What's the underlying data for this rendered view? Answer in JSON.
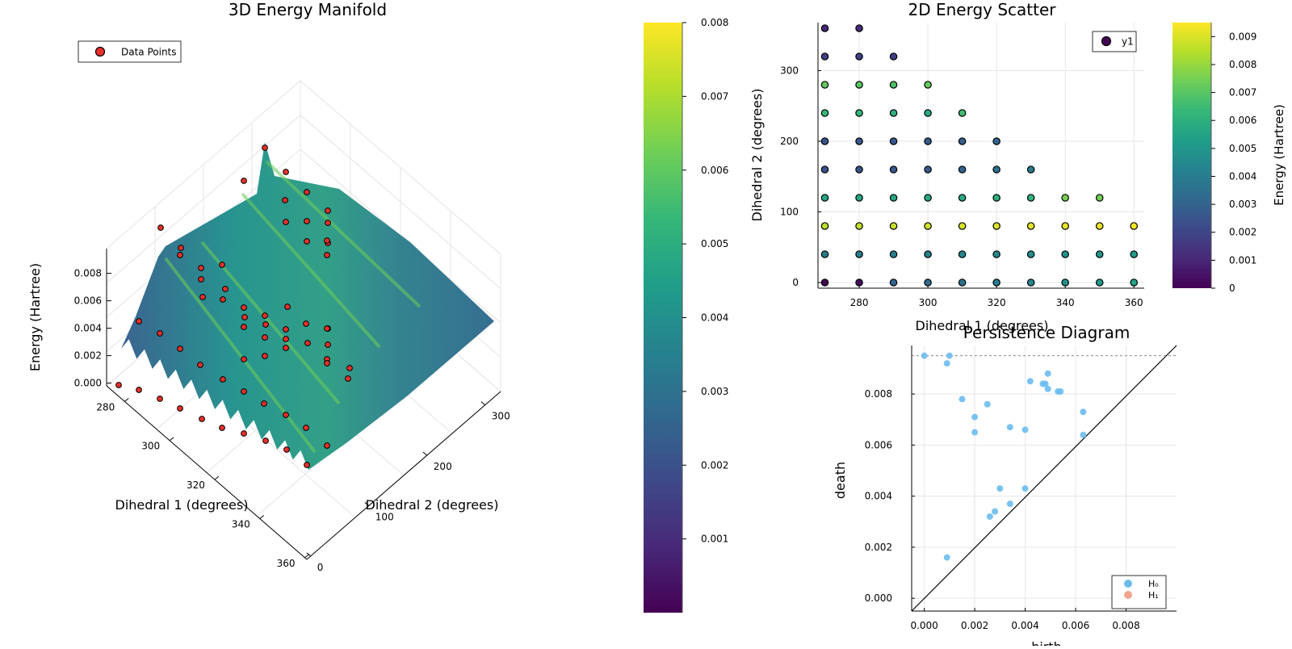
{
  "colors": {
    "viridis": [
      "#440154",
      "#482878",
      "#3e4989",
      "#31688e",
      "#26828e",
      "#1f9e89",
      "#35b779",
      "#6ece58",
      "#b5de2b",
      "#fde725"
    ],
    "marker_red": "#e8302a",
    "h0": "#6cbcf0",
    "h1": "#f0a58f",
    "axis": "#000000",
    "grid": "#e6e6e6"
  },
  "chart_data": [
    {
      "id": "surface3d",
      "type": "surface",
      "title": "3D Energy Manifold",
      "xlabel": "Dihedral 1 (degrees)",
      "ylabel": "Dihedral 2 (degrees)",
      "zlabel": "Energy (Hartree)",
      "x_ticks": [
        "280",
        "300",
        "320",
        "340",
        "360"
      ],
      "y_ticks": [
        "0",
        "100",
        "200",
        "300"
      ],
      "z_ticks": [
        "0.000",
        "0.002",
        "0.004",
        "0.006",
        "0.008"
      ],
      "legend": [
        "Data Points"
      ],
      "legend_position": "top-left",
      "colorbar_ticks": [
        "0.001",
        "0.002",
        "0.003",
        "0.004",
        "0.005",
        "0.006",
        "0.007",
        "0.008"
      ],
      "colorbar_range": [
        0,
        0.008
      ]
    },
    {
      "id": "scatter2d",
      "type": "scatter",
      "title": "2D Energy Scatter",
      "xlabel": "Dihedral 1 (degrees)",
      "ylabel": "Dihedral 2 (degrees)",
      "colorbar_label": "Energy (Hartree)",
      "xlim": [
        268,
        363
      ],
      "ylim": [
        -8,
        368
      ],
      "x_ticks": [
        280,
        300,
        320,
        340,
        360
      ],
      "y_ticks": [
        0,
        100,
        200,
        300
      ],
      "colorbar_range": [
        0,
        0.0095
      ],
      "colorbar_ticks": [
        0,
        0.001,
        0.002,
        0.003,
        0.004,
        0.005,
        0.006,
        0.007,
        0.008,
        0.009
      ],
      "legend": [
        "y1"
      ],
      "legend_position": "top-right",
      "grid": true,
      "series": [
        {
          "name": "y1",
          "points": [
            {
              "x": 270,
              "y": 0,
              "e": 0.0
            },
            {
              "x": 280,
              "y": 0,
              "e": 0.0002
            },
            {
              "x": 290,
              "y": 0,
              "e": 0.003
            },
            {
              "x": 300,
              "y": 0,
              "e": 0.0033
            },
            {
              "x": 310,
              "y": 0,
              "e": 0.0036
            },
            {
              "x": 320,
              "y": 0,
              "e": 0.004
            },
            {
              "x": 330,
              "y": 0,
              "e": 0.0044
            },
            {
              "x": 340,
              "y": 0,
              "e": 0.0048
            },
            {
              "x": 350,
              "y": 0,
              "e": 0.0052
            },
            {
              "x": 360,
              "y": 0,
              "e": 0.0055
            },
            {
              "x": 270,
              "y": 40,
              "e": 0.004
            },
            {
              "x": 280,
              "y": 40,
              "e": 0.004
            },
            {
              "x": 290,
              "y": 40,
              "e": 0.0041
            },
            {
              "x": 300,
              "y": 40,
              "e": 0.0042
            },
            {
              "x": 310,
              "y": 40,
              "e": 0.0043
            },
            {
              "x": 320,
              "y": 40,
              "e": 0.0045
            },
            {
              "x": 330,
              "y": 40,
              "e": 0.0046
            },
            {
              "x": 340,
              "y": 40,
              "e": 0.0048
            },
            {
              "x": 350,
              "y": 40,
              "e": 0.005
            },
            {
              "x": 360,
              "y": 40,
              "e": 0.0052
            },
            {
              "x": 270,
              "y": 80,
              "e": 0.0085
            },
            {
              "x": 280,
              "y": 80,
              "e": 0.0086
            },
            {
              "x": 290,
              "y": 80,
              "e": 0.0087
            },
            {
              "x": 300,
              "y": 80,
              "e": 0.0088
            },
            {
              "x": 310,
              "y": 80,
              "e": 0.0089
            },
            {
              "x": 320,
              "y": 80,
              "e": 0.009
            },
            {
              "x": 330,
              "y": 80,
              "e": 0.0091
            },
            {
              "x": 340,
              "y": 80,
              "e": 0.0092
            },
            {
              "x": 350,
              "y": 80,
              "e": 0.0093
            },
            {
              "x": 360,
              "y": 80,
              "e": 0.0094
            },
            {
              "x": 270,
              "y": 120,
              "e": 0.0056
            },
            {
              "x": 280,
              "y": 120,
              "e": 0.0056
            },
            {
              "x": 290,
              "y": 120,
              "e": 0.0056
            },
            {
              "x": 300,
              "y": 120,
              "e": 0.0057
            },
            {
              "x": 310,
              "y": 120,
              "e": 0.0058
            },
            {
              "x": 320,
              "y": 120,
              "e": 0.006
            },
            {
              "x": 330,
              "y": 120,
              "e": 0.0062
            },
            {
              "x": 340,
              "y": 120,
              "e": 0.0075
            },
            {
              "x": 350,
              "y": 120,
              "e": 0.0075
            },
            {
              "x": 270,
              "y": 160,
              "e": 0.0025
            },
            {
              "x": 280,
              "y": 160,
              "e": 0.0025
            },
            {
              "x": 290,
              "y": 160,
              "e": 0.0026
            },
            {
              "x": 300,
              "y": 160,
              "e": 0.0027
            },
            {
              "x": 310,
              "y": 160,
              "e": 0.003
            },
            {
              "x": 320,
              "y": 160,
              "e": 0.0035
            },
            {
              "x": 330,
              "y": 160,
              "e": 0.004
            },
            {
              "x": 270,
              "y": 200,
              "e": 0.0025
            },
            {
              "x": 280,
              "y": 200,
              "e": 0.0025
            },
            {
              "x": 290,
              "y": 200,
              "e": 0.0026
            },
            {
              "x": 300,
              "y": 200,
              "e": 0.0027
            },
            {
              "x": 310,
              "y": 200,
              "e": 0.0028
            },
            {
              "x": 320,
              "y": 200,
              "e": 0.003
            },
            {
              "x": 270,
              "y": 240,
              "e": 0.0063
            },
            {
              "x": 280,
              "y": 240,
              "e": 0.0062
            },
            {
              "x": 290,
              "y": 240,
              "e": 0.006
            },
            {
              "x": 300,
              "y": 240,
              "e": 0.0058
            },
            {
              "x": 310,
              "y": 240,
              "e": 0.0065
            },
            {
              "x": 270,
              "y": 280,
              "e": 0.0072
            },
            {
              "x": 280,
              "y": 280,
              "e": 0.007
            },
            {
              "x": 290,
              "y": 280,
              "e": 0.0068
            },
            {
              "x": 300,
              "y": 280,
              "e": 0.0072
            },
            {
              "x": 270,
              "y": 320,
              "e": 0.0018
            },
            {
              "x": 280,
              "y": 320,
              "e": 0.0018
            },
            {
              "x": 290,
              "y": 320,
              "e": 0.0018
            },
            {
              "x": 270,
              "y": 360,
              "e": 0.001
            },
            {
              "x": 280,
              "y": 360,
              "e": 0.0012
            }
          ]
        }
      ]
    },
    {
      "id": "persistence",
      "type": "scatter",
      "title": "Persistence Diagram",
      "xlabel": "birth",
      "ylabel": "death",
      "xlim": [
        -0.0005,
        0.01
      ],
      "ylim": [
        -0.0005,
        0.0099
      ],
      "x_ticks": [
        "0.000",
        "0.002",
        "0.004",
        "0.006",
        "0.008"
      ],
      "y_ticks": [
        "0.000",
        "0.002",
        "0.004",
        "0.006",
        "0.008"
      ],
      "infinity_line": 0.0095,
      "legend": [
        "H₀",
        "H₁"
      ],
      "legend_position": "bottom-right",
      "grid": true,
      "series": [
        {
          "name": "H₀",
          "points": [
            [
              0.0,
              0.0095
            ],
            [
              0.001,
              0.0095
            ],
            [
              0.0009,
              0.0092
            ],
            [
              0.0015,
              0.0078
            ],
            [
              0.002,
              0.0071
            ],
            [
              0.002,
              0.0065
            ],
            [
              0.0025,
              0.0076
            ],
            [
              0.0034,
              0.0067
            ],
            [
              0.004,
              0.0066
            ],
            [
              0.0042,
              0.0085
            ],
            [
              0.0047,
              0.0084
            ],
            [
              0.0048,
              0.0084
            ],
            [
              0.0049,
              0.0088
            ],
            [
              0.0049,
              0.0082
            ],
            [
              0.0053,
              0.0081
            ],
            [
              0.0054,
              0.0081
            ],
            [
              0.0063,
              0.0073
            ],
            [
              0.0063,
              0.0064
            ],
            [
              0.003,
              0.0043
            ],
            [
              0.004,
              0.0043
            ],
            [
              0.0034,
              0.0037
            ],
            [
              0.0028,
              0.0034
            ],
            [
              0.0026,
              0.0032
            ],
            [
              0.0009,
              0.0016
            ]
          ]
        },
        {
          "name": "H₁",
          "points": []
        }
      ]
    }
  ]
}
